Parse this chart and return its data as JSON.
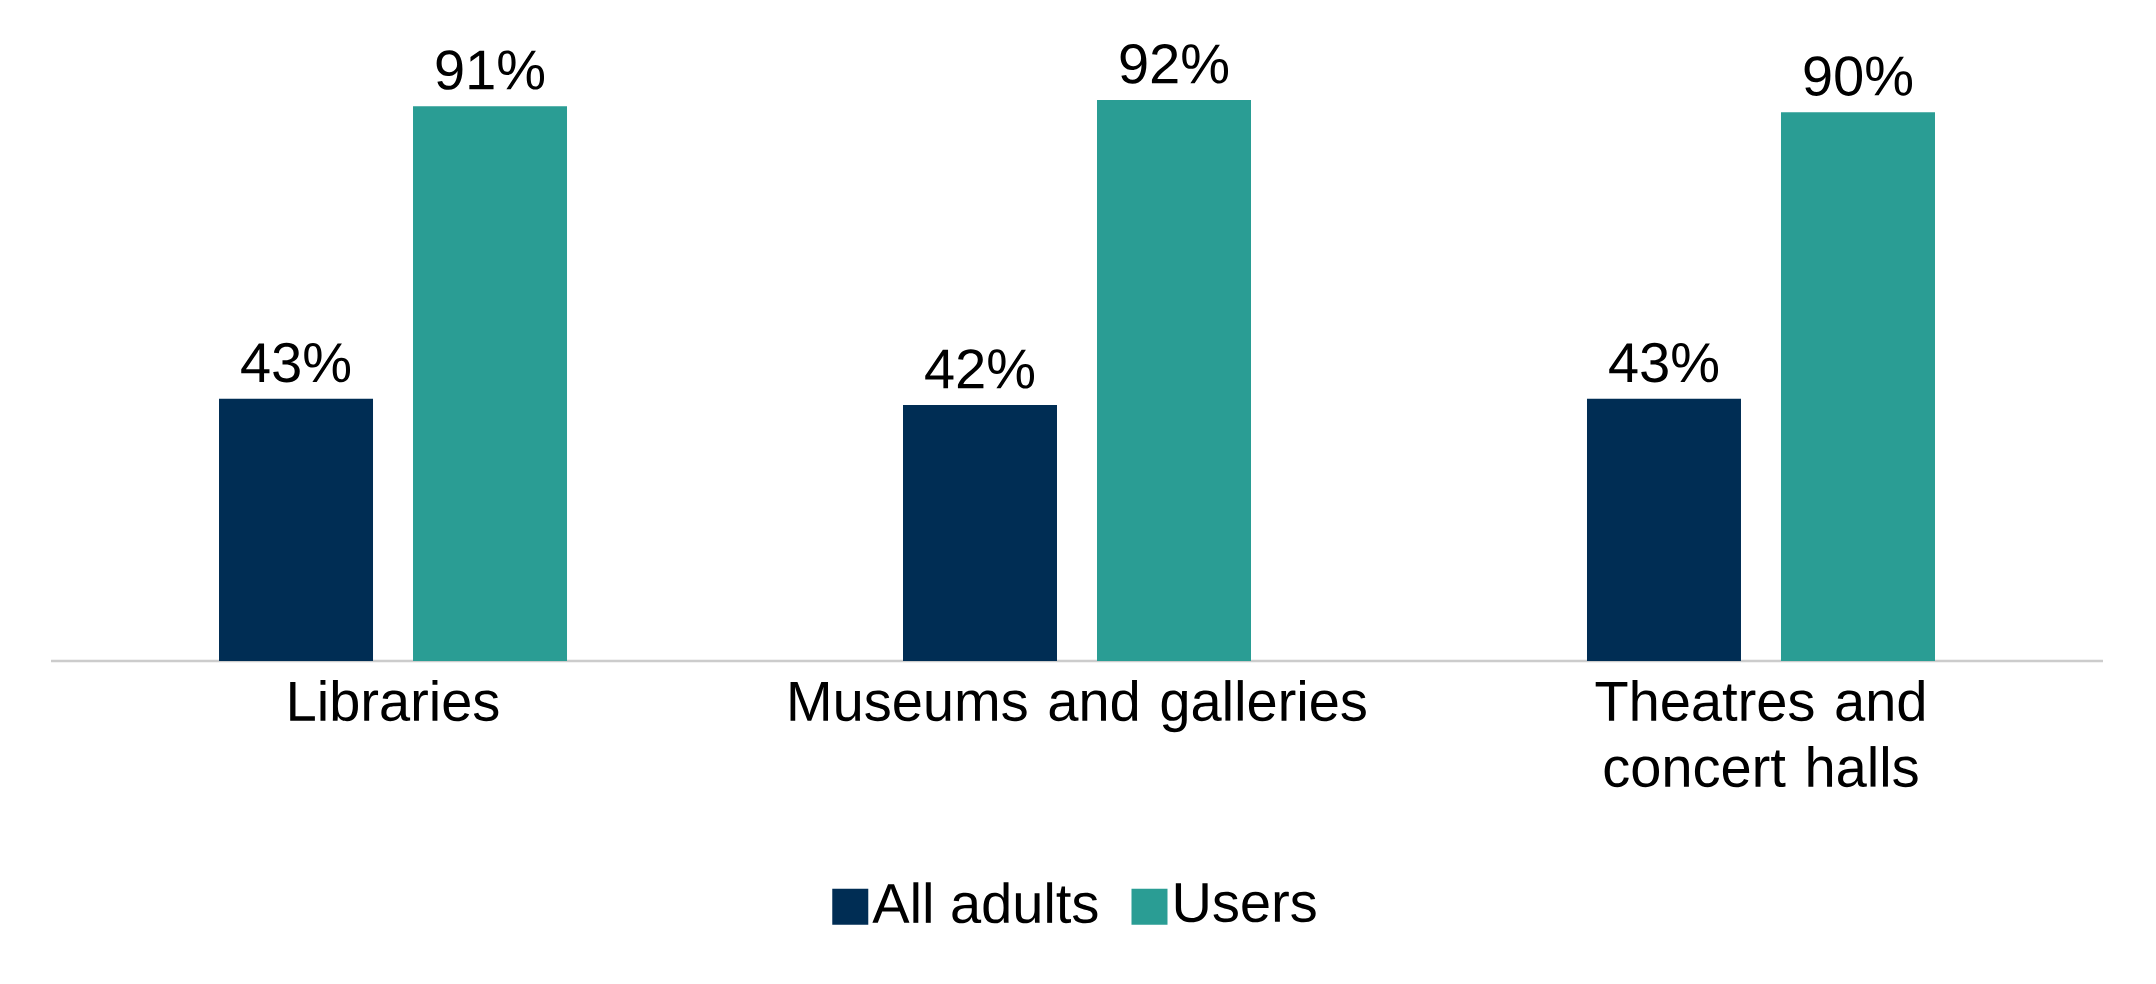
{
  "chart_data": {
    "type": "bar",
    "categories": [
      "Libraries",
      "Museums and galleries",
      "Theatres and concert halls"
    ],
    "series": [
      {
        "name": "All adults",
        "color": "#002d54",
        "values": [
          43,
          42,
          43
        ],
        "value_labels": [
          "43%",
          "42%",
          "43%"
        ]
      },
      {
        "name": "Users",
        "color": "#2a9d94",
        "values": [
          91,
          92,
          90
        ],
        "value_labels": [
          "91%",
          "92%",
          "90%"
        ]
      }
    ],
    "legend": "bottom"
  }
}
